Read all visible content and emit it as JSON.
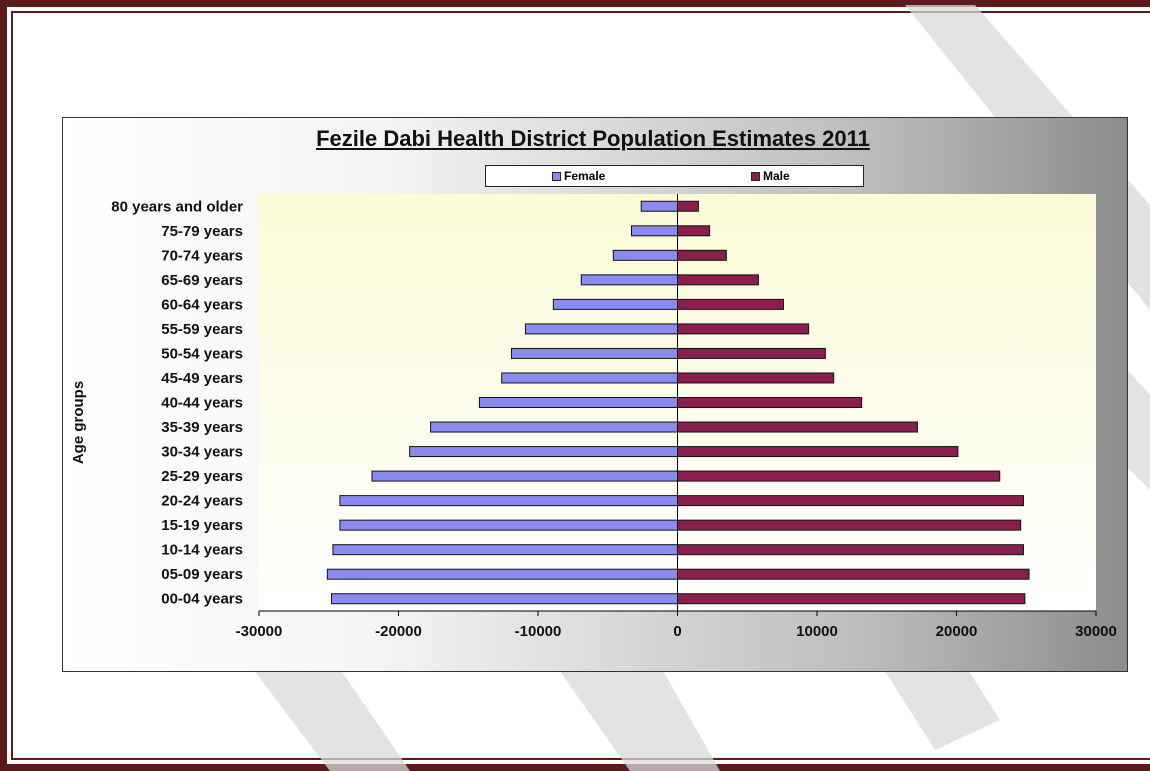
{
  "chart_data": {
    "type": "bar",
    "orientation": "horizontal",
    "title": "Fezile Dabi Health District Population Estimates 2011",
    "ylabel": "Age groups",
    "xlabel": "",
    "xlim": [
      -30000,
      30000
    ],
    "x_ticks": [
      -30000,
      -20000,
      -10000,
      0,
      10000,
      20000,
      30000
    ],
    "x_tick_labels": [
      "-30000",
      "-20000",
      "-10000",
      "0",
      "10000",
      "20000",
      "30000"
    ],
    "grid": false,
    "legend_position": "top",
    "categories": [
      "80 years and older",
      "75-79 years",
      "70-74 years",
      "65-69 years",
      "60-64 years",
      "55-59 years",
      "50-54 years",
      "45-49 years",
      "40-44 years",
      "35-39 years",
      "30-34 years",
      "25-29 years",
      "20-24 years",
      "15-19 years",
      "10-14 years",
      "05-09 years",
      "00-04 years"
    ],
    "series": [
      {
        "name": "Female",
        "color": "#8a8af0",
        "values": [
          -2600,
          -3300,
          -4600,
          -6900,
          -8900,
          -10900,
          -11900,
          -12600,
          -14200,
          -17700,
          -19200,
          -21900,
          -24200,
          -24200,
          -24700,
          -25100,
          -24800
        ]
      },
      {
        "name": "Male",
        "color": "#8a1f4e",
        "values": [
          1500,
          2300,
          3500,
          5800,
          7600,
          9400,
          10600,
          11200,
          13200,
          17200,
          20100,
          23100,
          24800,
          24600,
          24800,
          25200,
          24900
        ]
      }
    ]
  }
}
